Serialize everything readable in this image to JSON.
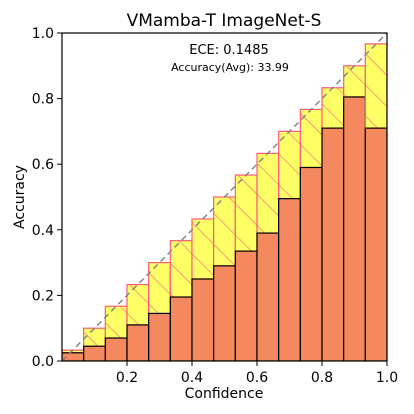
{
  "chart_data": {
    "type": "bar",
    "title": "VMamba-T  ImageNet-S",
    "xlabel": "Confidence",
    "ylabel": "Accuracy",
    "xlim": [
      0,
      1
    ],
    "ylim": [
      0,
      1
    ],
    "xticks": [
      0.2,
      0.4,
      0.6,
      0.8,
      1.0
    ],
    "xtick_labels": [
      "0.2",
      "0.4",
      "0.6",
      "0.8",
      "1.0"
    ],
    "yticks": [
      0.0,
      0.2,
      0.4,
      0.6,
      0.8,
      1.0
    ],
    "ytick_labels": [
      "0.0",
      "0.2",
      "0.4",
      "0.6",
      "0.8",
      "1.0"
    ],
    "annotations": {
      "ece": "ECE: 0.1485",
      "accuracy": "Accuracy(Avg): 33.99"
    },
    "bin_count": 15,
    "bin_confidence": [
      0.033,
      0.1,
      0.167,
      0.233,
      0.3,
      0.367,
      0.433,
      0.5,
      0.567,
      0.633,
      0.7,
      0.767,
      0.833,
      0.9,
      0.967
    ],
    "bin_accuracy": [
      0.025,
      0.045,
      0.07,
      0.11,
      0.145,
      0.195,
      0.25,
      0.29,
      0.335,
      0.39,
      0.495,
      0.59,
      0.71,
      0.805,
      0.71
    ],
    "diagonal": "perfect calibration (dashed)",
    "grid": false,
    "colors": {
      "accuracy_bar": "#f4895f",
      "gap_bar": "#ffff66",
      "gap_edge": "#ff5a7a",
      "bar_edge": "#000000",
      "diagonal": "#808080"
    }
  }
}
